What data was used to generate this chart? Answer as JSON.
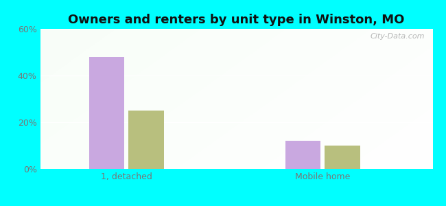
{
  "title": "Owners and renters by unit type in Winston, MO",
  "categories": [
    "1, detached",
    "Mobile home"
  ],
  "owner_values": [
    0.48,
    0.12
  ],
  "renter_values": [
    0.25,
    0.1
  ],
  "owner_color": "#c9a8e0",
  "renter_color": "#b8bf7e",
  "ylim": [
    0,
    0.6
  ],
  "yticks": [
    0.0,
    0.2,
    0.4,
    0.6
  ],
  "ytick_labels": [
    "0%",
    "20%",
    "40%",
    "60%"
  ],
  "background_color": "#00FFFF",
  "watermark": "City-Data.com",
  "title_fontsize": 13,
  "axis_fontsize": 9,
  "legend_fontsize": 9,
  "group_positions": [
    0.22,
    0.72
  ],
  "bar_width": 0.09,
  "bar_gap": 0.01,
  "xlim": [
    0,
    1.0
  ]
}
